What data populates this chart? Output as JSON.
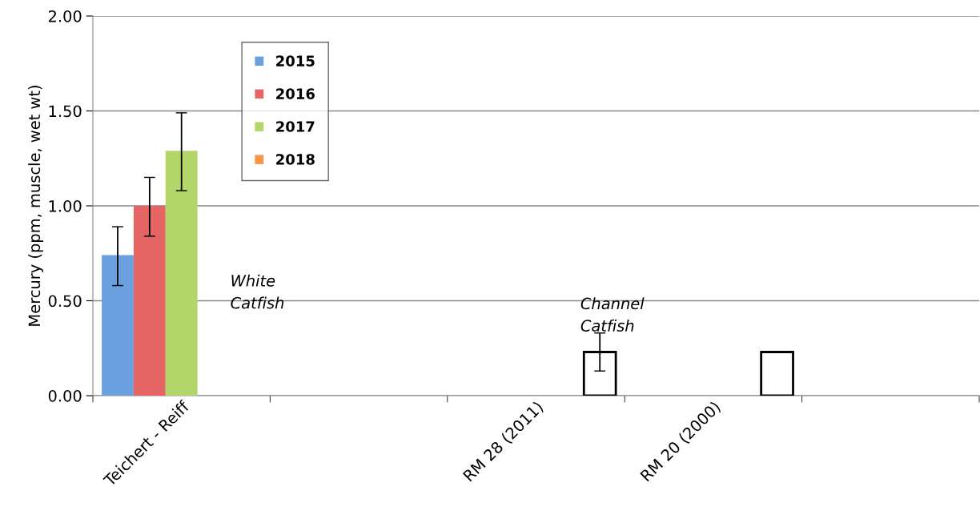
{
  "chart_data": {
    "type": "bar",
    "ylabel": "Mercury (ppm, muscle, wet wt)",
    "categories": [
      "Teichert - Reiff",
      null,
      "RM 28 (2011)",
      "RM 20 (2000)",
      null
    ],
    "series": [
      {
        "name": "2015",
        "color": "#6a9fe0",
        "values": [
          0.74,
          null,
          null,
          null,
          null
        ],
        "errors": [
          [
            0.58,
            0.89
          ],
          null,
          null,
          null,
          null
        ]
      },
      {
        "name": "2016",
        "color": "#e56464",
        "values": [
          1.0,
          null,
          null,
          null,
          null
        ],
        "errors": [
          [
            0.84,
            1.15
          ],
          null,
          null,
          null,
          null
        ]
      },
      {
        "name": "2017",
        "color": "#b3d66a",
        "values": [
          1.29,
          null,
          null,
          null,
          null
        ],
        "errors": [
          [
            1.08,
            1.49
          ],
          null,
          null,
          null,
          null
        ]
      },
      {
        "name": "2018",
        "color": "#f79646",
        "values": [
          null,
          null,
          null,
          null,
          null
        ]
      },
      {
        "color": "#ffffff",
        "values": [
          null,
          null,
          0.23,
          0.23,
          null
        ],
        "errors": [
          null,
          null,
          [
            0.13,
            0.33
          ],
          null,
          null
        ]
      }
    ],
    "ylim": [
      0,
      2
    ],
    "yticks": [
      {
        "value": 0,
        "label": "0.00"
      },
      {
        "value": 0.5,
        "label": "0.50"
      },
      {
        "value": 1,
        "label": "1.00"
      },
      {
        "value": 1.5,
        "label": "1.50"
      },
      {
        "value": 2,
        "label": "2.00"
      }
    ],
    "grid": "y",
    "legend": "top left",
    "annotations": [
      "White\nCatfish",
      "Channel\nCatfish"
    ]
  }
}
